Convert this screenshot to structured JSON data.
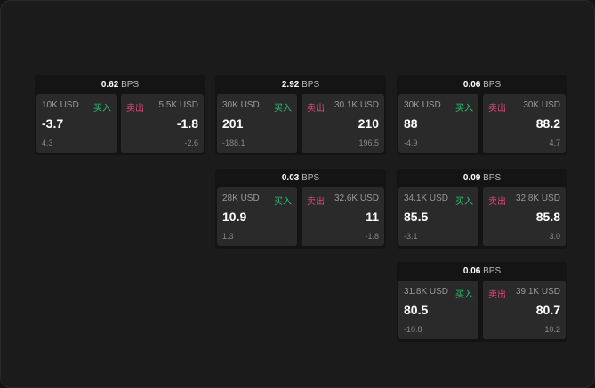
{
  "unit_label": "BPS",
  "buy_label": "买入",
  "sell_label": "卖出",
  "colors": {
    "buy": "#2fbf71",
    "sell": "#e0457b"
  },
  "cards": [
    {
      "spread": "0.62",
      "buy": {
        "size": "10K USD",
        "price": "-3.7",
        "change": "4.3"
      },
      "sell": {
        "size": "5.5K USD",
        "price": "-1.8",
        "change": "-2.6"
      }
    },
    {
      "spread": "2.92",
      "buy": {
        "size": "30K USD",
        "price": "201",
        "change": "-188.1"
      },
      "sell": {
        "size": "30.1K USD",
        "price": "210",
        "change": "196.5"
      }
    },
    {
      "spread": "0.06",
      "buy": {
        "size": "30K USD",
        "price": "88",
        "change": "-4.9"
      },
      "sell": {
        "size": "30K USD",
        "price": "88.2",
        "change": "4.7"
      }
    },
    {
      "spread": "0.03",
      "buy": {
        "size": "28K USD",
        "price": "10.9",
        "change": "1.3"
      },
      "sell": {
        "size": "32.6K USD",
        "price": "11",
        "change": "-1.8"
      }
    },
    {
      "spread": "0.09",
      "buy": {
        "size": "34.1K USD",
        "price": "85.5",
        "change": "-3.1"
      },
      "sell": {
        "size": "32.8K USD",
        "price": "85.8",
        "change": "3.0"
      }
    },
    {
      "spread": "0.06",
      "buy": {
        "size": "31.8K USD",
        "price": "80.5",
        "change": "-10.8"
      },
      "sell": {
        "size": "39.1K USD",
        "price": "80.7",
        "change": "10.2"
      }
    }
  ]
}
